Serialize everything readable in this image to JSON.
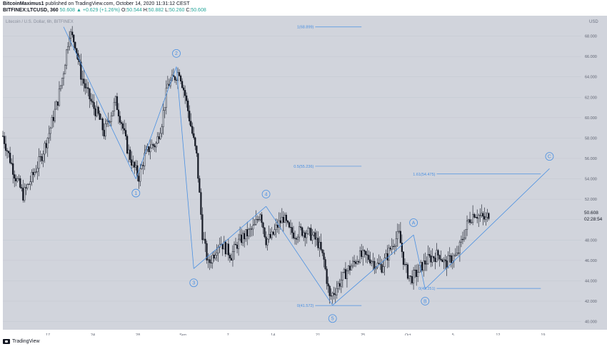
{
  "header": {
    "line1_author": "BitcoinMaximus1",
    "line1_rest": " published on TradingView.com, October 14, 2020 11:31:12 CEST",
    "symbol": "BITFINEX:LTCUSD, 360",
    "price": "50.608",
    "change": "▲ +0.629 (+1.26%)",
    "o_label": "O:",
    "o_val": "50.544",
    "h_label": "H:",
    "h_val": "50.882",
    "l_label": "L:",
    "l_val": "50.260",
    "c_label": "C:",
    "c_val": "50.608"
  },
  "footer": {
    "brand": "TradingView"
  },
  "colors": {
    "background": "#d1d4dc",
    "candle": "#131722",
    "annotation": "#4a90e2",
    "price_tag": "#131722"
  },
  "chart_data": {
    "type": "candlestick",
    "title": "Litecoin / U.S. Dollar, 6h, BITFINEX",
    "currency": "USD",
    "ylim": [
      39.2,
      70.0
    ],
    "y_ticks": [
      "68.000",
      "66.000",
      "64.000",
      "62.000",
      "60.000",
      "58.000",
      "56.000",
      "54.000",
      "52.000",
      "50.000",
      "48.000",
      "46.000",
      "44.000",
      "42.000",
      "40.000"
    ],
    "x_ticks": [
      "17",
      "24",
      "28",
      "Sep",
      "7",
      "14",
      "21",
      "25",
      "Oct",
      "5",
      "12",
      "19"
    ],
    "last_price": "50.608",
    "countdown": "02:28:54",
    "price_path": [
      [
        0,
        58.2
      ],
      [
        4,
        54.5
      ],
      [
        7,
        52.4
      ],
      [
        10,
        54.1
      ],
      [
        13,
        55.9
      ],
      [
        16,
        58.5
      ],
      [
        19,
        61.7
      ],
      [
        21,
        64.6
      ],
      [
        23,
        68.4
      ],
      [
        25,
        67.3
      ],
      [
        27,
        64.2
      ],
      [
        29,
        62.6
      ],
      [
        31,
        61.2
      ],
      [
        33,
        60.2
      ],
      [
        35,
        58.5
      ],
      [
        37,
        60.1
      ],
      [
        39,
        61.6
      ],
      [
        41,
        59.6
      ],
      [
        43,
        57.0
      ],
      [
        45,
        55.3
      ],
      [
        47,
        54.2
      ],
      [
        49,
        56.2
      ],
      [
        51,
        57.2
      ],
      [
        53,
        57.4
      ],
      [
        55,
        59.6
      ],
      [
        57,
        63.2
      ],
      [
        59,
        63.8
      ],
      [
        61,
        64.6
      ],
      [
        63,
        62.2
      ],
      [
        65,
        59.2
      ],
      [
        67,
        56.2
      ],
      [
        69,
        48.6
      ],
      [
        71,
        45.6
      ],
      [
        73,
        46.7
      ],
      [
        75,
        47.9
      ],
      [
        77,
        47.2
      ],
      [
        79,
        46.5
      ],
      [
        81,
        47.6
      ],
      [
        83,
        48.3
      ],
      [
        85,
        48.7
      ],
      [
        87,
        49.3
      ],
      [
        89,
        50.8
      ],
      [
        91,
        48.0
      ],
      [
        93,
        48.3
      ],
      [
        95,
        49.4
      ],
      [
        97,
        50.2
      ],
      [
        99,
        48.9
      ],
      [
        101,
        48.6
      ],
      [
        103,
        48.9
      ],
      [
        105,
        48.8
      ],
      [
        107,
        48.4
      ],
      [
        109,
        47.7
      ],
      [
        111,
        46.0
      ],
      [
        113,
        42.3
      ],
      [
        115,
        43.1
      ],
      [
        117,
        44.1
      ],
      [
        119,
        45.0
      ],
      [
        121,
        45.6
      ],
      [
        123,
        46.4
      ],
      [
        125,
        46.4
      ],
      [
        127,
        46.2
      ],
      [
        129,
        45.6
      ],
      [
        131,
        45.4
      ],
      [
        133,
        46.5
      ],
      [
        135,
        47.8
      ],
      [
        137,
        48.5
      ],
      [
        139,
        45.3
      ],
      [
        141,
        44.2
      ],
      [
        143,
        44.7
      ],
      [
        145,
        45.5
      ],
      [
        147,
        46.1
      ],
      [
        149,
        46.4
      ],
      [
        151,
        46.6
      ],
      [
        153,
        45.6
      ],
      [
        155,
        46.2
      ],
      [
        157,
        46.4
      ],
      [
        159,
        48.2
      ],
      [
        161,
        49.9
      ],
      [
        163,
        50.7
      ],
      [
        165,
        50.3
      ],
      [
        167,
        50.0
      ],
      [
        168,
        50.6
      ]
    ],
    "waves": [
      {
        "label": "1",
        "points": [
          [
            21,
            68.9
          ],
          [
            46,
            54.0
          ]
        ]
      },
      {
        "label": "2",
        "points": [
          [
            46,
            54.0
          ],
          [
            60,
            65.0
          ]
        ]
      },
      {
        "label": "3",
        "points": [
          [
            60,
            65.0
          ],
          [
            66,
            45.2
          ]
        ]
      },
      {
        "label": "4",
        "points": [
          [
            66,
            45.2
          ],
          [
            91,
            51.3
          ]
        ]
      },
      {
        "label": "5",
        "points": [
          [
            91,
            51.3
          ],
          [
            114,
            41.6
          ]
        ]
      },
      {
        "label": "A",
        "points": [
          [
            114,
            41.6
          ],
          [
            142,
            48.5
          ]
        ]
      },
      {
        "label": "B",
        "points": [
          [
            142,
            48.5
          ],
          [
            146,
            43.2
          ]
        ]
      },
      {
        "label": "C",
        "points": [
          [
            146,
            43.2
          ],
          [
            189,
            55.0
          ]
        ]
      }
    ],
    "wave_labels": [
      {
        "text": "1",
        "x": 46,
        "y": 52.6
      },
      {
        "text": "2",
        "x": 60,
        "y": 66.3
      },
      {
        "text": "3",
        "x": 66,
        "y": 43.8
      },
      {
        "text": "4",
        "x": 91,
        "y": 52.5
      },
      {
        "text": "5",
        "x": 114,
        "y": 40.3
      },
      {
        "text": "A",
        "x": 142,
        "y": 49.7
      },
      {
        "text": "B",
        "x": 146,
        "y": 42.0
      },
      {
        "text": "C",
        "x": 189,
        "y": 56.2
      }
    ],
    "fib_levels": [
      {
        "label": "1(68.899)",
        "value": 68.899,
        "x_start": 108,
        "x_end": 124
      },
      {
        "label": "0.5(55.236)",
        "value": 55.236,
        "x_start": 108,
        "x_end": 124
      },
      {
        "label": "0(41.572)",
        "value": 41.572,
        "x_start": 108,
        "x_end": 124
      },
      {
        "label": "1.61(54.475)",
        "value": 54.475,
        "x_start": 150,
        "x_end": 186
      },
      {
        "label": "0(43.251)",
        "value": 43.251,
        "x_start": 150,
        "x_end": 186
      }
    ]
  }
}
